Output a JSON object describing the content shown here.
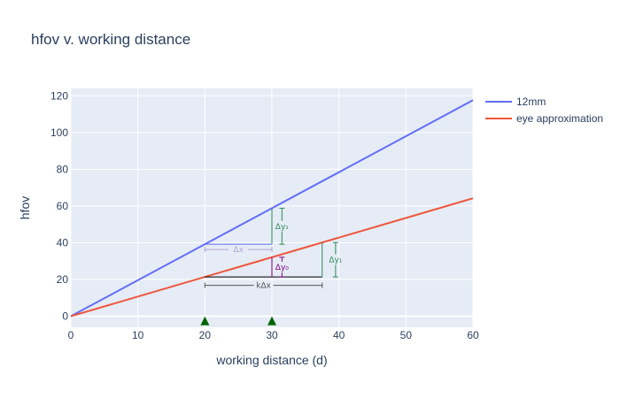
{
  "chart_data": {
    "type": "line",
    "title": "hfov v. working distance",
    "xlabel": "working distance (d)",
    "ylabel": "hfov",
    "xlim": [
      0,
      60
    ],
    "ylim": [
      -6,
      124
    ],
    "x_ticks": [
      0,
      10,
      20,
      30,
      40,
      50,
      60
    ],
    "y_ticks": [
      0,
      20,
      40,
      60,
      80,
      100,
      120
    ],
    "grid": true,
    "legend_position": "right",
    "series": [
      {
        "name": "12mm",
        "color": "#636efa",
        "x": [
          0,
          60
        ],
        "y": [
          0,
          117.6
        ]
      },
      {
        "name": "eye approximation",
        "color": "#ef553b",
        "x": [
          0,
          60
        ],
        "y": [
          0,
          64.2
        ]
      }
    ],
    "markers": [
      {
        "x": 20,
        "y": -3,
        "symbol": "triangle-up",
        "color": "#006400"
      },
      {
        "x": 30,
        "y": -3,
        "symbol": "triangle-up",
        "color": "#006400"
      }
    ],
    "annotation_lines": [
      {
        "x0": 20,
        "y0": 39.2,
        "x1": 30,
        "y1": 39.2,
        "color": "#636efa"
      },
      {
        "x0": 30,
        "y0": 39.2,
        "x1": 30,
        "y1": 58.8,
        "color": "#2e8b57"
      },
      {
        "x0": 20,
        "y0": 21.4,
        "x1": 37.5,
        "y1": 21.4,
        "color": "#000000"
      },
      {
        "x0": 30,
        "y0": 21.4,
        "x1": 30,
        "y1": 32.1,
        "color": "#800080"
      },
      {
        "x0": 37.5,
        "y0": 21.4,
        "x1": 37.5,
        "y1": 40.1,
        "color": "#2e8b57"
      }
    ],
    "annotations": [
      {
        "label": "Δx",
        "color": "#b0a3d4",
        "orient": "h",
        "from": 20,
        "to": 30,
        "at": 36.3
      },
      {
        "label": "Δy₁",
        "color": "#2e8b57",
        "orient": "v",
        "from": 39.2,
        "to": 58.8,
        "at": 31.5
      },
      {
        "label": "Δy₀",
        "color": "#800080",
        "orient": "v",
        "from": 21.4,
        "to": 32.1,
        "at": 31.5
      },
      {
        "label": "Δy₁",
        "color": "#2e8b57",
        "orient": "v",
        "from": 21.4,
        "to": 40.1,
        "at": 39.5
      },
      {
        "label": "kΔx",
        "color": "#555555",
        "orient": "h",
        "from": 20,
        "to": 37.5,
        "at": 16.8
      }
    ]
  }
}
